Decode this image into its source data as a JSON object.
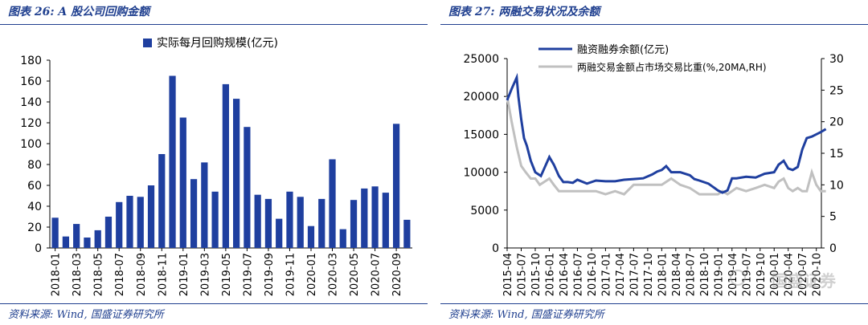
{
  "left": {
    "title": "图表 26:  A 股公司回购金额",
    "source": "资料来源: Wind, 国盛证券研究所"
  },
  "right": {
    "title": "图表 27:  两融交易状况及余额",
    "source": "资料来源: Wind, 国盛证券研究所"
  },
  "watermark": "国盛证券",
  "colors": {
    "bar": "#1f3f9f",
    "balance_line": "#1f3f9f",
    "ratio_line": "#c0c0c0",
    "title": "#1f3f8f"
  },
  "icons": {
    "watermark_icon": "wechat-like-icon"
  },
  "chart_data": [
    {
      "type": "bar",
      "legend": "实际每月回购规模(亿元)",
      "categories": [
        "2018-01",
        "2018-02",
        "2018-03",
        "2018-04",
        "2018-05",
        "2018-06",
        "2018-07",
        "2018-08",
        "2018-09",
        "2018-10",
        "2018-11",
        "2018-12",
        "2019-01",
        "2019-02",
        "2019-03",
        "2019-04",
        "2019-05",
        "2019-06",
        "2019-07",
        "2019-08",
        "2019-09",
        "2019-10",
        "2019-11",
        "2019-12",
        "2020-01",
        "2020-02",
        "2020-03",
        "2020-04",
        "2020-05",
        "2020-06",
        "2020-07",
        "2020-08",
        "2020-09",
        "2020-10"
      ],
      "xtick_labels": [
        "2018-01",
        "2018-03",
        "2018-05",
        "2018-07",
        "2018-09",
        "2018-11",
        "2019-01",
        "2019-03",
        "2019-05",
        "2019-07",
        "2019-09",
        "2019-11",
        "2020-01",
        "2020-03",
        "2020-05",
        "2020-07",
        "2020-09"
      ],
      "values": [
        29,
        11,
        23,
        10,
        17,
        30,
        44,
        50,
        49,
        60,
        90,
        165,
        125,
        66,
        82,
        54,
        157,
        143,
        116,
        51,
        47,
        28,
        54,
        49,
        21,
        47,
        85,
        18,
        46,
        57,
        59,
        53,
        119,
        27
      ],
      "ylim": [
        0,
        180
      ],
      "yticks": [
        0,
        20,
        40,
        60,
        80,
        100,
        120,
        140,
        160,
        180
      ],
      "legend_position": "top-center",
      "grid": false
    },
    {
      "type": "line",
      "x_range": [
        "2015-04",
        "2020-11"
      ],
      "xtick_labels": [
        "2015-04",
        "2015-07",
        "2015-10",
        "2016-01",
        "2016-04",
        "2016-07",
        "2016-10",
        "2017-01",
        "2017-04",
        "2017-07",
        "2017-10",
        "2018-01",
        "2018-04",
        "2018-07",
        "2018-10",
        "2019-01",
        "2019-04",
        "2019-07",
        "2019-10",
        "2020-01",
        "2020-04",
        "2020-07",
        "2020-10"
      ],
      "series": [
        {
          "name": "融资融券余额(亿元)",
          "axis": "left",
          "x": [
            2015.25,
            2015.33,
            2015.42,
            2015.45,
            2015.5,
            2015.55,
            2015.6,
            2015.67,
            2015.75,
            2015.85,
            2016.0,
            2016.08,
            2016.17,
            2016.25,
            2016.33,
            2016.42,
            2016.5,
            2016.67,
            2016.83,
            2017.0,
            2017.17,
            2017.33,
            2017.5,
            2017.67,
            2017.83,
            2017.92,
            2018.0,
            2018.08,
            2018.17,
            2018.33,
            2018.5,
            2018.58,
            2018.67,
            2018.83,
            2019.0,
            2019.08,
            2019.17,
            2019.25,
            2019.33,
            2019.5,
            2019.67,
            2019.83,
            2020.0,
            2020.08,
            2020.17,
            2020.25,
            2020.33,
            2020.42,
            2020.5,
            2020.58,
            2020.67,
            2020.83,
            2020.92
          ],
          "values": [
            19500,
            21000,
            22500,
            20000,
            17000,
            14500,
            13500,
            11500,
            10000,
            9500,
            12000,
            11000,
            9500,
            8700,
            8700,
            8600,
            9000,
            8500,
            8900,
            8800,
            8800,
            9000,
            9100,
            9200,
            9700,
            10100,
            10300,
            10800,
            10000,
            10000,
            9600,
            9100,
            8900,
            8500,
            7600,
            7300,
            7600,
            9200,
            9200,
            9400,
            9300,
            9800,
            10000,
            11000,
            11500,
            10500,
            10300,
            10700,
            13000,
            14500,
            14700,
            15300,
            15700
          ]
        },
        {
          "name": "两融交易金额占市场交易比重(%,20MA,RH)",
          "axis": "right",
          "x": [
            2015.25,
            2015.33,
            2015.42,
            2015.5,
            2015.58,
            2015.67,
            2015.75,
            2015.83,
            2016.0,
            2016.08,
            2016.17,
            2016.33,
            2016.5,
            2016.67,
            2016.83,
            2017.0,
            2017.17,
            2017.33,
            2017.5,
            2017.67,
            2017.83,
            2018.0,
            2018.17,
            2018.33,
            2018.5,
            2018.67,
            2018.83,
            2019.0,
            2019.08,
            2019.17,
            2019.33,
            2019.5,
            2019.67,
            2019.83,
            2020.0,
            2020.08,
            2020.17,
            2020.25,
            2020.33,
            2020.42,
            2020.5,
            2020.58,
            2020.67,
            2020.75,
            2020.83,
            2020.92
          ],
          "values": [
            24,
            20,
            16,
            13,
            12,
            11,
            11,
            10,
            11,
            10,
            9,
            9,
            9,
            9,
            9,
            8.5,
            9,
            8.5,
            10,
            10,
            10,
            10,
            11,
            10,
            9.5,
            8.5,
            8.5,
            8.5,
            9,
            8.5,
            9.5,
            9,
            9.5,
            10,
            9.5,
            10.5,
            11,
            9.5,
            9,
            9.5,
            9,
            9,
            12,
            10,
            9,
            9
          ]
        }
      ],
      "ylim_left": [
        0,
        25000
      ],
      "yticks_left": [
        0,
        5000,
        10000,
        15000,
        20000,
        25000
      ],
      "ylim_right": [
        0,
        30
      ],
      "yticks_right": [
        0,
        5,
        10,
        15,
        20,
        25,
        30
      ],
      "legend_position": "top-left",
      "grid": false
    }
  ]
}
